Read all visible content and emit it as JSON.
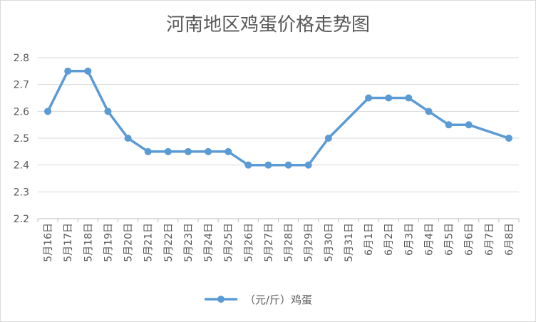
{
  "chart_data": {
    "type": "line",
    "title": "河南地区鸡蛋价格走势图",
    "xlabel": "",
    "ylabel": "",
    "ylim": [
      2.2,
      2.8
    ],
    "yticks": [
      "2.2",
      "2.3",
      "2.4",
      "2.5",
      "2.6",
      "2.7",
      "2.8"
    ],
    "categories": [
      "5月16日",
      "5月17日",
      "5月18日",
      "5月19日",
      "5月20日",
      "5月21日",
      "5月22日",
      "5月23日",
      "5月24日",
      "5月25日",
      "5月26日",
      "5月27日",
      "5月28日",
      "5月29日",
      "5月30日",
      "5月31日",
      "6月1日",
      "6月2日",
      "6月3日",
      "6月4日",
      "6月5日",
      "6月6日",
      "6月7日",
      "6月8日"
    ],
    "series": [
      {
        "name": "（元/斤）鸡蛋",
        "color": "#5b9bd5",
        "values": [
          2.6,
          2.75,
          2.75,
          2.6,
          2.5,
          2.45,
          2.45,
          2.45,
          2.45,
          2.45,
          2.4,
          2.4,
          2.4,
          2.4,
          2.5,
          null,
          2.65,
          2.65,
          2.65,
          2.6,
          2.55,
          2.55,
          null,
          2.5
        ]
      }
    ],
    "grid": true,
    "legend": "bottom"
  }
}
